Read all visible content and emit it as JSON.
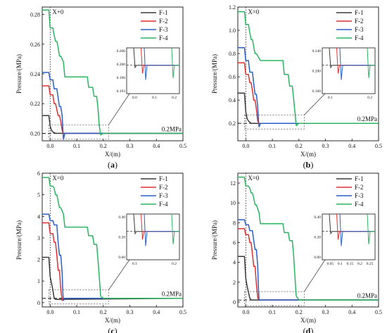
{
  "panels": [
    {
      "label": "a",
      "x_label": "X/(m)",
      "y_label": "Pressure/(MPa)",
      "x_ticks": [
        "0.0",
        "0.1",
        "0.2",
        "0.3",
        "0.4",
        "0.5"
      ],
      "y_ticks": [
        "0.20",
        "0.22",
        "0.24",
        "0.26",
        "0.28"
      ],
      "xlim": [
        -0.03,
        0.5
      ],
      "ylim": [
        0.195,
        0.285
      ],
      "ref_label": "0.2MPa",
      "ref_value": 0.2,
      "origin_label": "X+0",
      "legend": [
        "F-1",
        "F-2",
        "F-3",
        "F-4"
      ],
      "inset": {
        "x_ticks": [
          "0.0",
          "0.1",
          "0.2"
        ],
        "y_ticks": [
          "0.206",
          "0.200",
          "0.196",
          "0.193"
        ]
      }
    },
    {
      "label": "b",
      "x_label": "X/(m)",
      "y_label": "Pressure/(MPa)",
      "x_ticks": [
        "0.0",
        "0.1",
        "0.2",
        "0.3",
        "0.4",
        "0.5"
      ],
      "y_ticks": [
        "0.2",
        "0.4",
        "0.6",
        "0.8",
        "1.0",
        "1.2"
      ],
      "xlim": [
        -0.03,
        0.5
      ],
      "ylim": [
        0.05,
        1.2
      ],
      "ref_label": "0.2MPa",
      "ref_value": 0.2,
      "origin_label": "X=0",
      "legend": [
        "F-1",
        "F-2",
        "F-3",
        "F-4"
      ],
      "inset": {
        "x_ticks": [
          "0.1",
          "0.2"
        ],
        "y_ticks": [
          "0.240",
          "0.200",
          "0.160"
        ]
      }
    },
    {
      "label": "c",
      "x_label": "X/(m)",
      "y_label": "Pressure/(MPa)",
      "x_ticks": [
        "0.0",
        "0.1",
        "0.2",
        "0.3",
        "0.4",
        "0.5"
      ],
      "y_ticks": [
        "0",
        "1",
        "2",
        "3",
        "4",
        "5",
        "6"
      ],
      "xlim": [
        -0.03,
        0.5
      ],
      "ylim": [
        -0.2,
        6.0
      ],
      "ref_label": "0.2MPa",
      "ref_value": 0.2,
      "origin_label": "X=0",
      "legend": [
        "F-1",
        "F-2",
        "F-3",
        "F-4"
      ],
      "inset": {
        "x_ticks": [
          "0.1",
          "0.2"
        ],
        "y_ticks": [
          "0.40",
          "0.20",
          "0.00"
        ]
      }
    },
    {
      "label": "d",
      "x_label": "X/(m)",
      "y_label": "Pressure/(MPa)",
      "x_ticks": [
        "0.0",
        "0.1",
        "0.2",
        "0.3",
        "0.4",
        "0.5"
      ],
      "y_ticks": [
        "0",
        "2",
        "4",
        "6",
        "8",
        "10",
        "12"
      ],
      "xlim": [
        -0.03,
        0.5
      ],
      "ylim": [
        -0.5,
        13.0
      ],
      "ref_label": "0.2MPa",
      "ref_value": 0.2,
      "origin_label": "X=0",
      "legend": [
        "F-1",
        "F-2",
        "F-3",
        "F-4"
      ],
      "inset": {
        "x_ticks": [
          "0.05",
          "0.1",
          "0.15",
          "0.2",
          "0.25"
        ],
        "y_ticks": [
          "0.40",
          "0.20",
          "0.00"
        ]
      }
    }
  ],
  "colors": {
    "F-1": "#3a3a3a",
    "F-2": "#e03030",
    "F-3": "#2a5fc8",
    "F-4": "#2cb561"
  },
  "chart_data": [
    {
      "type": "line",
      "title": "",
      "xlabel": "X/(m)",
      "ylabel": "Pressure/(MPa)",
      "xlim": [
        -0.03,
        0.5
      ],
      "ylim": [
        0.195,
        0.285
      ],
      "series": [
        {
          "name": "F-1",
          "x": [
            -0.03,
            -0.005,
            0.0,
            0.005,
            0.01,
            0.02,
            0.5
          ],
          "y": [
            0.212,
            0.212,
            0.205,
            0.202,
            0.201,
            0.2,
            0.2
          ]
        },
        {
          "name": "F-2",
          "x": [
            -0.03,
            -0.005,
            0.0,
            0.01,
            0.015,
            0.02,
            0.025,
            0.03,
            0.035,
            0.04,
            0.045,
            0.05,
            0.5
          ],
          "y": [
            0.232,
            0.232,
            0.226,
            0.226,
            0.22,
            0.22,
            0.216,
            0.212,
            0.212,
            0.208,
            0.202,
            0.2,
            0.2
          ]
        },
        {
          "name": "F-3",
          "x": [
            -0.03,
            -0.005,
            0.0,
            0.01,
            0.015,
            0.025,
            0.03,
            0.035,
            0.04,
            0.045,
            0.048,
            0.05,
            0.055,
            0.5
          ],
          "y": [
            0.241,
            0.241,
            0.236,
            0.236,
            0.23,
            0.23,
            0.224,
            0.218,
            0.218,
            0.212,
            0.202,
            0.196,
            0.2,
            0.2
          ]
        },
        {
          "name": "F-4",
          "x": [
            -0.03,
            -0.005,
            0.0,
            0.01,
            0.015,
            0.02,
            0.025,
            0.03,
            0.035,
            0.04,
            0.05,
            0.055,
            0.06,
            0.14,
            0.145,
            0.16,
            0.165,
            0.175,
            0.18,
            0.185,
            0.19,
            0.2,
            0.5
          ],
          "y": [
            0.283,
            0.283,
            0.271,
            0.271,
            0.266,
            0.262,
            0.262,
            0.258,
            0.252,
            0.252,
            0.248,
            0.238,
            0.238,
            0.238,
            0.231,
            0.231,
            0.225,
            0.225,
            0.217,
            0.205,
            0.199,
            0.2,
            0.2
          ]
        }
      ]
    },
    {
      "type": "line",
      "title": "",
      "xlabel": "X/(m)",
      "ylabel": "Pressure/(MPa)",
      "xlim": [
        -0.03,
        0.5
      ],
      "ylim": [
        0.05,
        1.2
      ],
      "series": [
        {
          "name": "F-1",
          "x": [
            -0.03,
            -0.005,
            0.0,
            0.005,
            0.01,
            0.02,
            0.5
          ],
          "y": [
            0.46,
            0.46,
            0.3,
            0.24,
            0.22,
            0.2,
            0.2
          ]
        },
        {
          "name": "F-2",
          "x": [
            -0.03,
            -0.005,
            0.0,
            0.01,
            0.015,
            0.02,
            0.025,
            0.03,
            0.035,
            0.04,
            0.045,
            0.05,
            0.5
          ],
          "y": [
            0.72,
            0.72,
            0.62,
            0.62,
            0.55,
            0.55,
            0.48,
            0.4,
            0.4,
            0.32,
            0.22,
            0.2,
            0.2
          ]
        },
        {
          "name": "F-3",
          "x": [
            -0.03,
            -0.005,
            0.0,
            0.01,
            0.015,
            0.025,
            0.03,
            0.035,
            0.04,
            0.045,
            0.048,
            0.05,
            0.055,
            0.5
          ],
          "y": [
            0.85,
            0.85,
            0.74,
            0.74,
            0.64,
            0.64,
            0.54,
            0.45,
            0.45,
            0.34,
            0.22,
            0.17,
            0.2,
            0.2
          ]
        },
        {
          "name": "F-4",
          "x": [
            -0.03,
            -0.005,
            0.0,
            0.01,
            0.015,
            0.02,
            0.025,
            0.03,
            0.035,
            0.04,
            0.05,
            0.055,
            0.06,
            0.14,
            0.145,
            0.16,
            0.165,
            0.175,
            0.18,
            0.185,
            0.19,
            0.2,
            0.5
          ],
          "y": [
            1.16,
            1.16,
            1.05,
            1.05,
            0.98,
            0.92,
            0.92,
            0.86,
            0.8,
            0.8,
            0.76,
            0.74,
            0.74,
            0.74,
            0.62,
            0.62,
            0.52,
            0.52,
            0.42,
            0.3,
            0.18,
            0.2,
            0.2
          ]
        }
      ]
    },
    {
      "type": "line",
      "title": "",
      "xlabel": "X/(m)",
      "ylabel": "Pressure/(MPa)",
      "xlim": [
        -0.03,
        0.5
      ],
      "ylim": [
        -0.2,
        6.0
      ],
      "series": [
        {
          "name": "F-1",
          "x": [
            -0.03,
            -0.005,
            0.0,
            0.005,
            0.01,
            0.015,
            0.02,
            0.5
          ],
          "y": [
            2.1,
            2.1,
            1.2,
            0.9,
            0.6,
            0.2,
            0.15,
            0.2
          ]
        },
        {
          "name": "F-2",
          "x": [
            -0.03,
            -0.005,
            0.0,
            0.01,
            0.015,
            0.02,
            0.025,
            0.03,
            0.035,
            0.04,
            0.045,
            0.05,
            0.5
          ],
          "y": [
            3.7,
            3.7,
            3.2,
            3.2,
            2.8,
            2.8,
            2.2,
            1.5,
            1.5,
            0.6,
            0.1,
            0.2,
            0.2
          ]
        },
        {
          "name": "F-3",
          "x": [
            -0.03,
            -0.005,
            0.0,
            0.01,
            0.015,
            0.025,
            0.03,
            0.035,
            0.04,
            0.045,
            0.048,
            0.05,
            0.055,
            0.5
          ],
          "y": [
            4.1,
            4.1,
            3.8,
            3.8,
            3.6,
            3.6,
            2.8,
            2.2,
            2.2,
            1.4,
            0.4,
            0.1,
            0.2,
            0.2
          ]
        },
        {
          "name": "F-4",
          "x": [
            -0.03,
            -0.005,
            0.0,
            0.01,
            0.015,
            0.02,
            0.025,
            0.03,
            0.035,
            0.04,
            0.05,
            0.055,
            0.06,
            0.14,
            0.145,
            0.16,
            0.165,
            0.175,
            0.18,
            0.185,
            0.19,
            0.2,
            0.5
          ],
          "y": [
            5.8,
            5.8,
            5.4,
            5.4,
            5.3,
            5.0,
            5.0,
            4.7,
            4.4,
            4.4,
            4.1,
            3.5,
            3.5,
            3.5,
            3.1,
            3.1,
            2.7,
            2.7,
            2.0,
            1.2,
            0.3,
            0.2,
            0.2
          ]
        }
      ]
    },
    {
      "type": "line",
      "title": "",
      "xlabel": "X/(m)",
      "ylabel": "Pressure/(MPa)",
      "xlim": [
        -0.03,
        0.5
      ],
      "ylim": [
        -0.5,
        13.0
      ],
      "series": [
        {
          "name": "F-1",
          "x": [
            -0.03,
            -0.005,
            0.0,
            0.005,
            0.01,
            0.015,
            0.02,
            0.5
          ],
          "y": [
            4.6,
            4.6,
            2.4,
            1.6,
            1.0,
            0.4,
            0.2,
            0.2
          ]
        },
        {
          "name": "F-2",
          "x": [
            -0.03,
            -0.005,
            0.0,
            0.01,
            0.015,
            0.02,
            0.025,
            0.03,
            0.035,
            0.04,
            0.045,
            0.05,
            0.5
          ],
          "y": [
            7.4,
            7.4,
            6.8,
            6.8,
            6.0,
            6.0,
            4.8,
            3.6,
            3.6,
            1.8,
            0.4,
            0.2,
            0.2
          ]
        },
        {
          "name": "F-3",
          "x": [
            -0.03,
            -0.005,
            0.0,
            0.01,
            0.015,
            0.025,
            0.03,
            0.035,
            0.04,
            0.045,
            0.048,
            0.05,
            0.055,
            0.5
          ],
          "y": [
            8.3,
            8.3,
            7.8,
            7.8,
            7.2,
            7.2,
            6.2,
            5.3,
            5.3,
            3.6,
            1.2,
            0.2,
            0.2,
            0.2
          ]
        },
        {
          "name": "F-4",
          "x": [
            -0.03,
            -0.005,
            0.0,
            0.01,
            0.015,
            0.02,
            0.025,
            0.03,
            0.035,
            0.04,
            0.05,
            0.055,
            0.06,
            0.14,
            0.145,
            0.16,
            0.165,
            0.175,
            0.18,
            0.185,
            0.19,
            0.2,
            0.5
          ],
          "y": [
            12.6,
            12.6,
            11.7,
            11.7,
            11.5,
            11.0,
            11.0,
            10.5,
            9.8,
            9.8,
            9.0,
            7.9,
            7.9,
            7.9,
            7.0,
            7.0,
            6.2,
            6.2,
            4.8,
            2.6,
            0.6,
            0.2,
            0.2
          ]
        }
      ]
    }
  ]
}
